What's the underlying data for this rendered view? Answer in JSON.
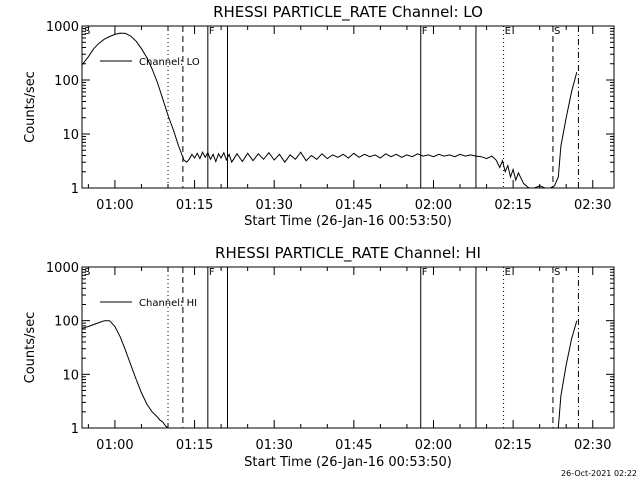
{
  "chart_data": [
    {
      "type": "line",
      "title": "RHESSI PARTICLE_RATE Channel: LO",
      "xlabel": "Start Time (26-Jan-16 00:53:50)",
      "ylabel": "Counts/sec",
      "yscale": "log",
      "ylim": [
        1,
        1000
      ],
      "xlim_minutes": [
        53.8,
        154.0
      ],
      "y_ticks": [
        "1",
        "10",
        "100",
        "1000"
      ],
      "x_ticks": [
        {
          "t": 60,
          "label": "01:00"
        },
        {
          "t": 75,
          "label": "01:15"
        },
        {
          "t": 90,
          "label": "01:30"
        },
        {
          "t": 105,
          "label": "01:45"
        },
        {
          "t": 120,
          "label": "02:00"
        },
        {
          "t": 135,
          "label": "02:15"
        },
        {
          "t": 150,
          "label": "02:30"
        }
      ],
      "legend": {
        "label": "Channel: LO",
        "position": "top-left"
      },
      "markers": [
        {
          "t": 54.0,
          "label": "S",
          "style": "solid-hidden"
        },
        {
          "t": 70.0,
          "label": "",
          "style": "dotted"
        },
        {
          "t": 72.8,
          "label": "",
          "style": "dashed"
        },
        {
          "t": 77.5,
          "label": "F",
          "style": "solid"
        },
        {
          "t": 81.2,
          "label": "",
          "style": "solid"
        },
        {
          "t": 117.6,
          "label": "F",
          "style": "solid"
        },
        {
          "t": 128.0,
          "label": "",
          "style": "solid"
        },
        {
          "t": 133.2,
          "label": "E",
          "style": "dotted"
        },
        {
          "t": 142.5,
          "label": "S",
          "style": "dashed"
        },
        {
          "t": 147.3,
          "label": "",
          "style": "dashdot"
        }
      ],
      "series": [
        {
          "x": [
            53.8,
            55.0,
            56.0,
            57.0,
            58.0,
            59.0,
            60.0,
            61.0,
            62.0,
            63.0,
            64.0,
            65.0,
            66.0,
            67.0,
            68.0,
            69.0,
            70.0,
            71.0,
            72.0,
            73.0,
            73.5,
            74.0,
            74.5,
            75.0,
            75.5,
            76.0,
            76.5,
            77.0,
            77.5,
            78.0,
            78.5,
            79.0,
            79.5,
            80.0,
            80.5,
            81.0,
            81.5,
            82.0,
            83.0,
            84.0,
            85.0,
            86.0,
            87.0,
            88.0,
            89.0,
            90.0,
            91.0,
            92.0,
            93.0,
            94.0,
            95.0,
            96.0,
            97.0,
            98.0,
            99.0,
            100.0,
            101.0,
            102.0,
            103.0,
            104.0,
            105.0,
            106.0,
            107.0,
            108.0,
            109.0,
            110.0,
            111.0,
            112.0,
            113.0,
            114.0,
            115.0,
            116.0,
            117.0,
            118.0,
            119.0,
            120.0,
            121.0,
            122.0,
            123.0,
            124.0,
            125.0,
            126.0,
            127.0,
            128.0,
            129.0,
            130.0,
            131.0,
            131.8,
            132.5,
            133.0,
            133.5,
            134.0,
            134.5,
            135.0,
            135.5,
            136.0,
            137.0,
            138.0,
            139.0,
            140.0,
            141.0,
            142.0,
            142.8,
            143.5,
            144.0,
            145.0,
            146.0,
            147.0
          ],
          "y": [
            190,
            270,
            380,
            480,
            570,
            640,
            700,
            740,
            730,
            650,
            520,
            380,
            260,
            160,
            90,
            45,
            22,
            12,
            6,
            3.3,
            3.0,
            3.4,
            4.2,
            3.6,
            4.4,
            3.5,
            4.6,
            3.7,
            4.5,
            3.4,
            4.2,
            3.1,
            4.3,
            3.6,
            4.5,
            3.3,
            4.2,
            3.0,
            4.3,
            3.1,
            4.4,
            3.2,
            4.3,
            3.4,
            4.5,
            3.3,
            4.2,
            3.0,
            4.1,
            3.4,
            4.6,
            3.2,
            4.0,
            3.4,
            4.3,
            3.5,
            4.1,
            3.7,
            4.2,
            3.6,
            4.4,
            3.7,
            4.2,
            3.8,
            4.1,
            3.6,
            4.3,
            3.8,
            4.2,
            3.7,
            4.1,
            3.8,
            4.3,
            3.9,
            4.1,
            3.8,
            4.2,
            3.9,
            4.1,
            3.8,
            4.2,
            3.9,
            4.1,
            3.9,
            3.8,
            3.5,
            3.9,
            3.3,
            2.4,
            3.2,
            2.0,
            2.6,
            1.6,
            2.2,
            1.4,
            1.9,
            1.2,
            0.9,
            0.9,
            1.1,
            0.9,
            0.9,
            1.1,
            1.6,
            6,
            20,
            60,
            140
          ]
        }
      ]
    },
    {
      "type": "line",
      "title": "RHESSI PARTICLE_RATE Channel: HI",
      "xlabel": "Start Time (26-Jan-16 00:53:50)",
      "ylabel": "Counts/sec",
      "yscale": "log",
      "ylim": [
        1,
        1000
      ],
      "xlim_minutes": [
        53.8,
        154.0
      ],
      "y_ticks": [
        "1",
        "10",
        "100",
        "1000"
      ],
      "x_ticks": [
        {
          "t": 60,
          "label": "01:00"
        },
        {
          "t": 75,
          "label": "01:15"
        },
        {
          "t": 90,
          "label": "01:30"
        },
        {
          "t": 105,
          "label": "01:45"
        },
        {
          "t": 120,
          "label": "02:00"
        },
        {
          "t": 135,
          "label": "02:15"
        },
        {
          "t": 150,
          "label": "02:30"
        }
      ],
      "legend": {
        "label": "Channel: HI",
        "position": "top-left"
      },
      "markers": [
        {
          "t": 54.0,
          "label": "S",
          "style": "solid-hidden"
        },
        {
          "t": 70.0,
          "label": "",
          "style": "dotted"
        },
        {
          "t": 72.8,
          "label": "",
          "style": "dashed"
        },
        {
          "t": 77.5,
          "label": "F",
          "style": "solid"
        },
        {
          "t": 81.2,
          "label": "",
          "style": "solid"
        },
        {
          "t": 117.6,
          "label": "F",
          "style": "solid"
        },
        {
          "t": 128.0,
          "label": "",
          "style": "solid"
        },
        {
          "t": 133.2,
          "label": "E",
          "style": "dotted"
        },
        {
          "t": 142.5,
          "label": "S",
          "style": "dashed"
        },
        {
          "t": 147.3,
          "label": "",
          "style": "dashdot"
        }
      ],
      "series": [
        {
          "x": [
            53.8,
            55.0,
            56.0,
            57.0,
            58.0,
            59.0,
            60.0,
            61.0,
            62.0,
            63.0,
            64.0,
            65.0,
            66.0,
            67.0,
            68.0,
            68.5,
            69.0,
            69.5,
            70.0,
            143.5,
            144.0,
            145.0,
            146.0,
            147.0
          ],
          "y": [
            72,
            78,
            85,
            92,
            100,
            100,
            78,
            50,
            28,
            15,
            8,
            4.5,
            2.8,
            2.0,
            1.6,
            1.4,
            1.3,
            1.1,
            0.9,
            1.0,
            4,
            15,
            45,
            100
          ]
        }
      ]
    }
  ],
  "timestamp": "26-Oct-2021 02:22"
}
